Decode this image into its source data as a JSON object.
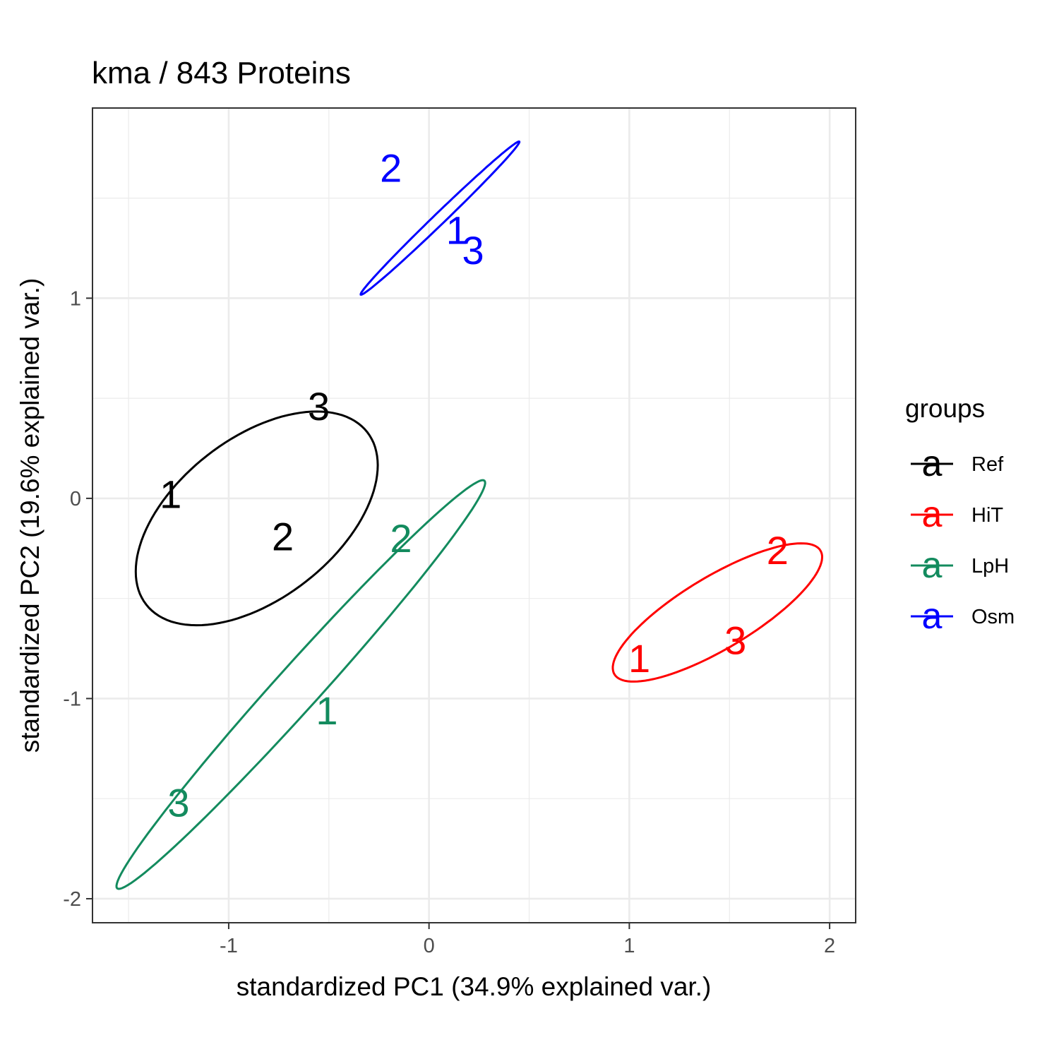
{
  "chart_data": {
    "type": "scatter",
    "title": "kma /  843  Proteins",
    "xlabel": "standardized PC1 (34.9% explained var.)",
    "ylabel": "standardized PC2 (19.6% explained var.)",
    "xlim": [
      -1.68,
      2.13
    ],
    "ylim": [
      -2.12,
      1.95
    ],
    "x_ticks": [
      -1,
      0,
      1,
      2
    ],
    "x_tick_labels": [
      "-1",
      "0",
      "1",
      "2"
    ],
    "y_ticks": [
      -2,
      -1,
      0,
      1
    ],
    "y_tick_labels": [
      "-2",
      "-1",
      "0",
      "1"
    ],
    "grid": true,
    "legend": {
      "title": "groups",
      "placement": "right",
      "key_glyph": "a"
    },
    "series": [
      {
        "name": "Ref",
        "color": "#000000",
        "points": [
          {
            "label": "1",
            "x": -1.29,
            "y": 0.02
          },
          {
            "label": "2",
            "x": -0.73,
            "y": -0.19
          },
          {
            "label": "3",
            "x": -0.55,
            "y": 0.46
          }
        ],
        "ellipse": {
          "cx": -0.86,
          "cy": -0.1,
          "rx": 0.7,
          "ry": 0.4,
          "angle_deg": 38
        }
      },
      {
        "name": "HiT",
        "color": "#ff0000",
        "points": [
          {
            "label": "1",
            "x": 1.05,
            "y": -0.8
          },
          {
            "label": "2",
            "x": 1.74,
            "y": -0.26
          },
          {
            "label": "3",
            "x": 1.53,
            "y": -0.71
          }
        ],
        "ellipse": {
          "cx": 1.44,
          "cy": -0.57,
          "rx": 0.6,
          "ry": 0.18,
          "angle_deg": 31
        }
      },
      {
        "name": "LpH",
        "color": "#138b5e",
        "points": [
          {
            "label": "1",
            "x": -0.51,
            "y": -1.06
          },
          {
            "label": "2",
            "x": -0.14,
            "y": -0.2
          },
          {
            "label": "3",
            "x": -1.25,
            "y": -1.52
          }
        ],
        "ellipse": {
          "cx": -0.64,
          "cy": -0.93,
          "rx": 1.37,
          "ry": 0.11,
          "angle_deg": 48
        }
      },
      {
        "name": "Osm",
        "color": "#0000ff",
        "points": [
          {
            "label": "1",
            "x": 0.14,
            "y": 1.34
          },
          {
            "label": "2",
            "x": -0.19,
            "y": 1.65
          },
          {
            "label": "3",
            "x": 0.22,
            "y": 1.24
          }
        ],
        "ellipse": {
          "cx": 0.055,
          "cy": 1.4,
          "rx": 0.55,
          "ry": 0.028,
          "angle_deg": 44
        }
      }
    ]
  }
}
